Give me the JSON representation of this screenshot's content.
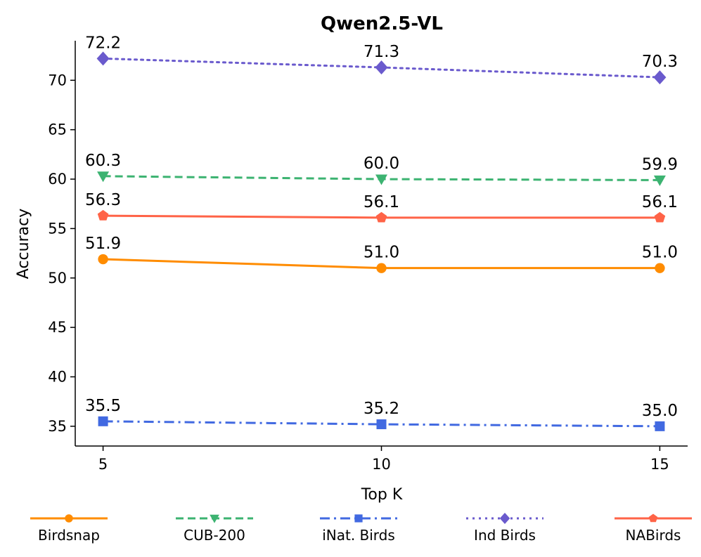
{
  "chart_data": {
    "type": "line",
    "title": "Qwen2.5-VL",
    "xlabel": "Top K",
    "ylabel": "Accuracy",
    "x": [
      5,
      10,
      15
    ],
    "xticks": [
      "5",
      "10",
      "15"
    ],
    "yticks": [
      "35",
      "40",
      "45",
      "50",
      "55",
      "60",
      "65",
      "70"
    ],
    "xlim": [
      4.5,
      15.5
    ],
    "ylim": [
      33.0,
      74.0
    ],
    "legend_position": "bottom",
    "series": [
      {
        "name": "Birdsnap",
        "values": [
          51.9,
          51.0,
          51.0
        ],
        "labels": [
          "51.9",
          "51.0",
          "51.0"
        ],
        "color": "#ff8c00",
        "marker": "circle",
        "linestyle": "solid"
      },
      {
        "name": "CUB-200",
        "values": [
          60.3,
          60.0,
          59.9
        ],
        "labels": [
          "60.3",
          "60.0",
          "59.9"
        ],
        "color": "#3cb371",
        "marker": "triangle-down",
        "linestyle": "dashed"
      },
      {
        "name": "iNat. Birds",
        "values": [
          35.5,
          35.2,
          35.0
        ],
        "labels": [
          "35.5",
          "35.2",
          "35.0"
        ],
        "color": "#4169e1",
        "marker": "square",
        "linestyle": "dashdot"
      },
      {
        "name": "Ind Birds",
        "values": [
          72.2,
          71.3,
          70.3
        ],
        "labels": [
          "72.2",
          "71.3",
          "70.3"
        ],
        "color": "#6a5acd",
        "marker": "diamond",
        "linestyle": "dotted"
      },
      {
        "name": "NABirds",
        "values": [
          56.3,
          56.1,
          56.1
        ],
        "labels": [
          "56.3",
          "56.1",
          "56.1"
        ],
        "color": "#ff6347",
        "marker": "pentagon",
        "linestyle": "solid"
      }
    ]
  }
}
